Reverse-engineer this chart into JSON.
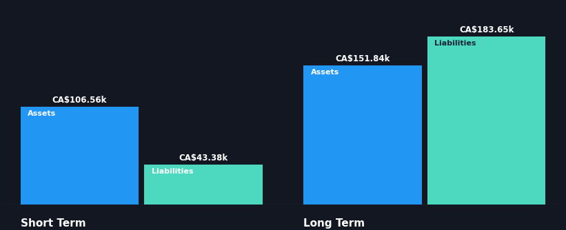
{
  "background_color": "#131722",
  "text_color_white": "#ffffff",
  "text_color_dark": "#1a2535",
  "asset_color": "#2196F3",
  "liability_color": "#4DD9C0",
  "short_term": {
    "label": "Short Term",
    "assets": 106.56,
    "liabilities": 43.38,
    "assets_label": "CA$106.56k",
    "liabilities_label": "CA$43.38k"
  },
  "long_term": {
    "label": "Long Term",
    "assets": 151.84,
    "liabilities": 183.65,
    "assets_label": "CA$151.84k",
    "liabilities_label": "CA$183.65k"
  },
  "bar_inner_label_assets": "Assets",
  "bar_inner_label_liabilities": "Liabilities",
  "ylim": [
    0,
    220
  ],
  "baseline_color": "#2a3045",
  "label_fontsize": 8.5,
  "inner_label_fontsize": 8.0,
  "group_label_fontsize": 11
}
